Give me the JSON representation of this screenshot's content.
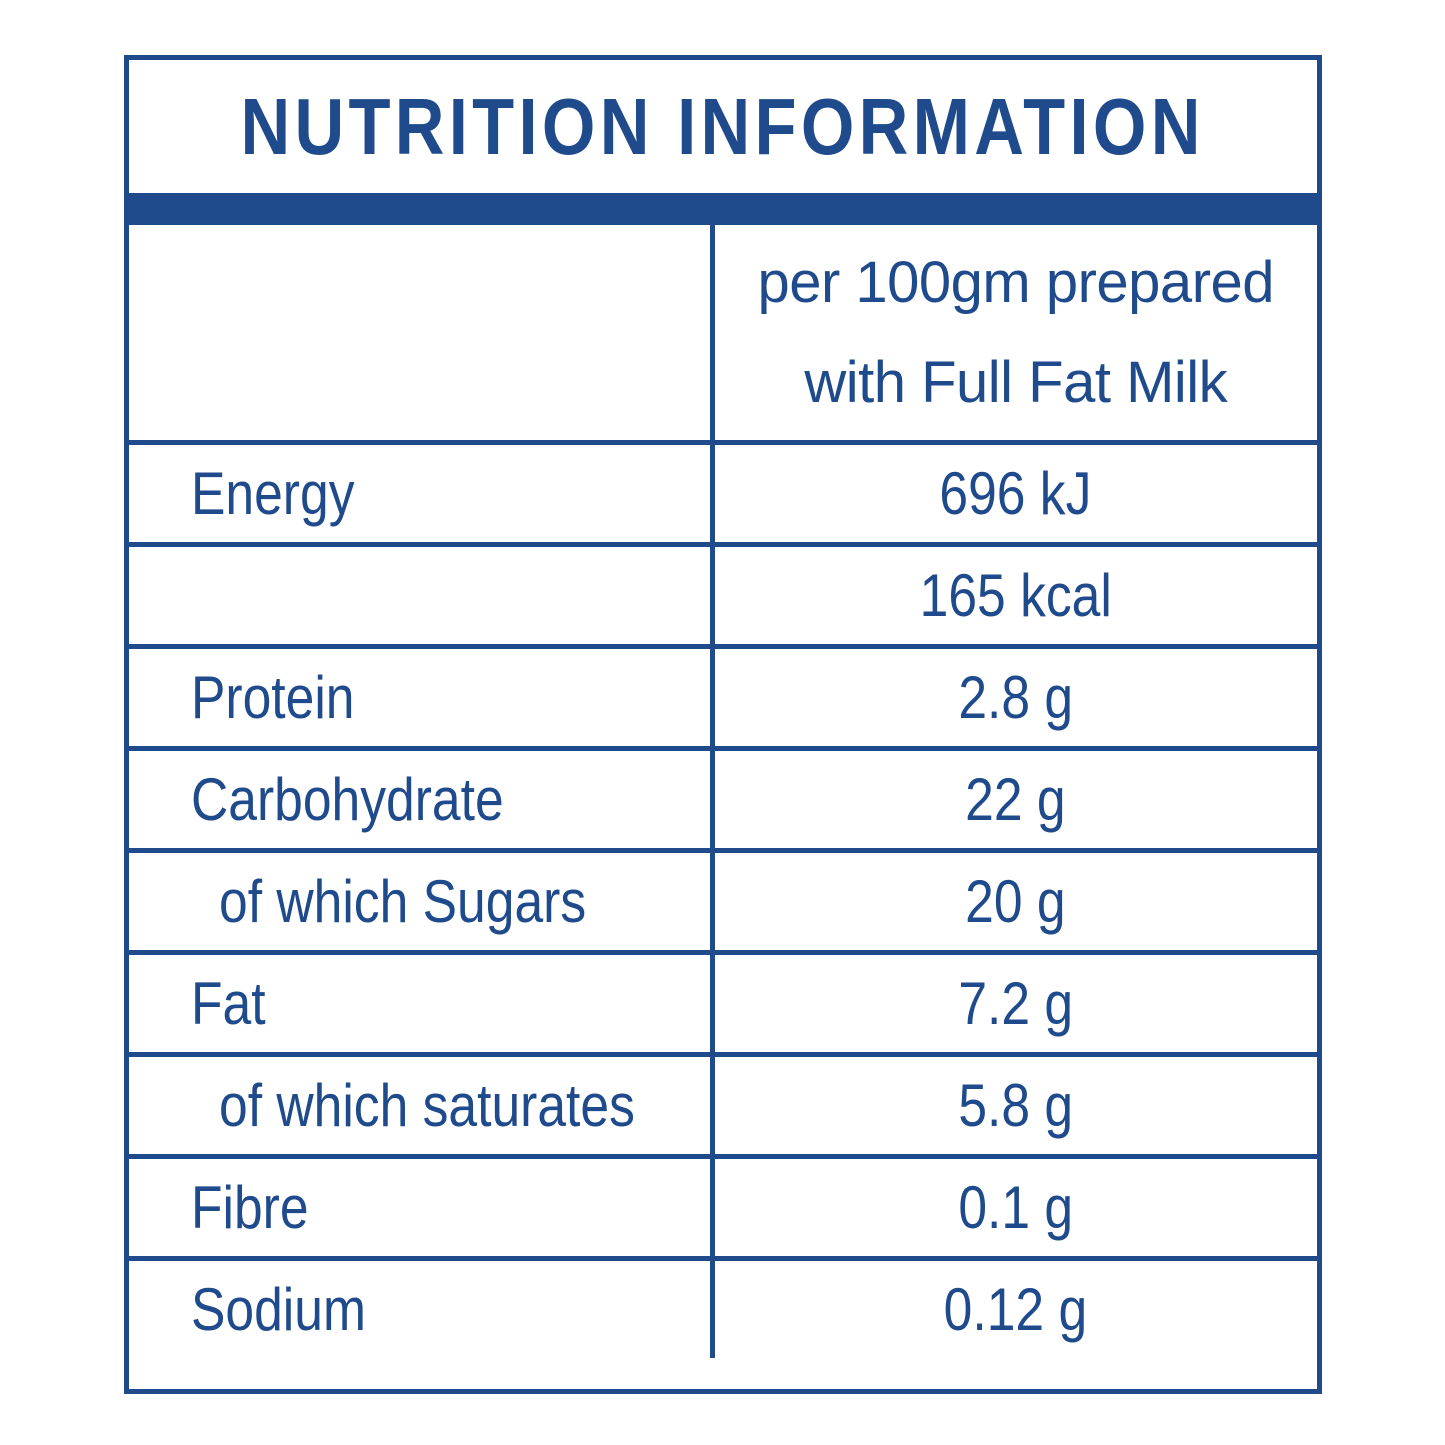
{
  "title": "NUTRITION INFORMATION",
  "column_header": {
    "line1": "per 100gm prepared",
    "line2": "with Full Fat Milk"
  },
  "rows": [
    {
      "name": "Energy",
      "value": "696 kJ"
    },
    {
      "name": "",
      "value": "165 kcal"
    },
    {
      "name": "Protein",
      "value": "2.8 g"
    },
    {
      "name": "Carbohydrate",
      "value": "22 g"
    },
    {
      "name": "of which Sugars",
      "value": "20 g"
    },
    {
      "name": "Fat",
      "value": "7.2 g"
    },
    {
      "name": "of which saturates",
      "value": "5.8 g"
    },
    {
      "name": "Fibre",
      "value": "0.1 g"
    },
    {
      "name": "Sodium",
      "value": "0.12 g"
    }
  ],
  "colors": {
    "primary": "#1f4a8c",
    "background": "#ffffff"
  }
}
